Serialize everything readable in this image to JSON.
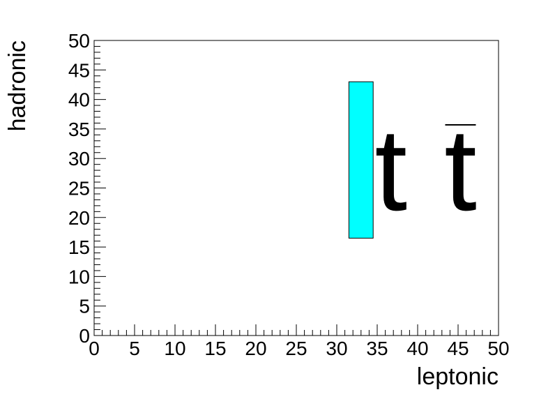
{
  "chart_data": {
    "type": "bar",
    "xlabel": "leptonic",
    "ylabel": "hadronic",
    "xlim": [
      0,
      50
    ],
    "ylim": [
      0,
      50
    ],
    "x_ticks": [
      0,
      5,
      10,
      15,
      20,
      25,
      30,
      35,
      40,
      45,
      50
    ],
    "y_ticks": [
      0,
      5,
      10,
      15,
      20,
      25,
      30,
      35,
      40,
      45,
      50
    ],
    "boxes": [
      {
        "x_range": [
          31.5,
          34.5
        ],
        "y_range": [
          16.5,
          43
        ],
        "color": "#00ffff"
      }
    ],
    "annotations": [
      {
        "text": "t",
        "x": 36.7,
        "overline": false
      },
      {
        "text": "t",
        "x": 45.3,
        "overline": true
      }
    ],
    "grid": false
  }
}
